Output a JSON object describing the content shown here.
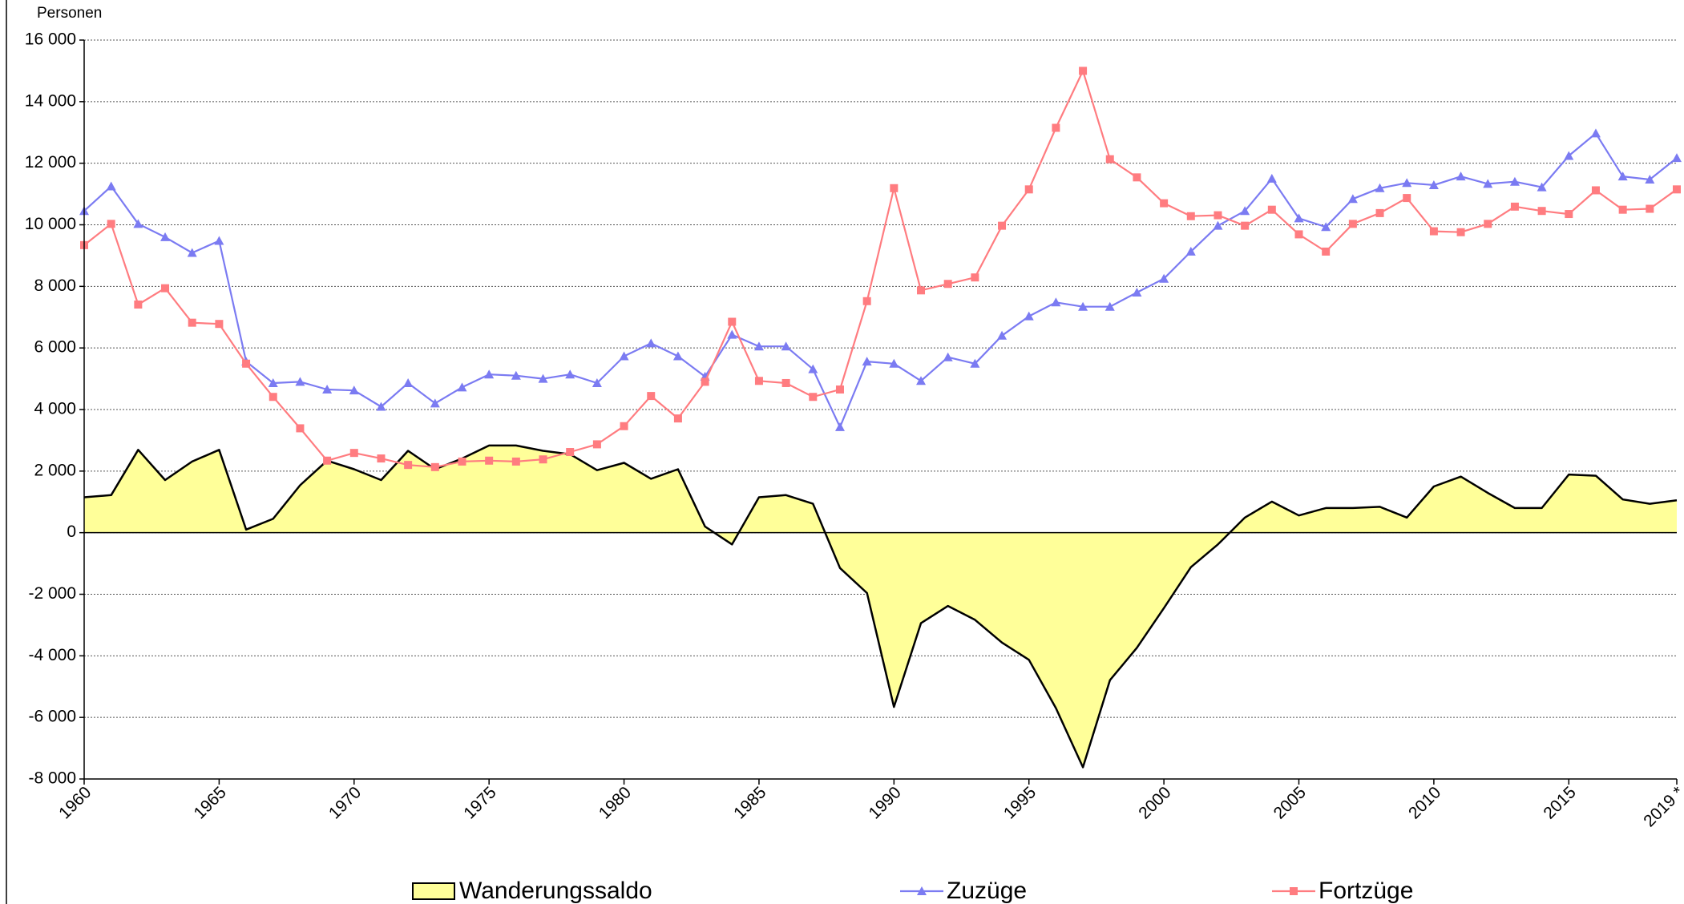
{
  "chart_data": {
    "type": "line",
    "y_label": "Personen",
    "categories": [
      "1960",
      null,
      null,
      null,
      null,
      "1965",
      null,
      null,
      null,
      null,
      "1970",
      null,
      null,
      null,
      null,
      "1975",
      null,
      null,
      null,
      null,
      "1980",
      null,
      null,
      null,
      null,
      "1985",
      null,
      null,
      null,
      null,
      "1990",
      null,
      null,
      null,
      null,
      "1995",
      null,
      null,
      null,
      null,
      "2000",
      null,
      null,
      null,
      null,
      "2005",
      null,
      null,
      null,
      null,
      "2010",
      null,
      null,
      null,
      null,
      "2015",
      null,
      null,
      null,
      "2019 *"
    ],
    "series": [
      {
        "name": "Wanderungssaldo",
        "type": "area",
        "color": "#ffff99",
        "values": [
          1150,
          1220,
          2690,
          1710,
          2310,
          2690,
          100,
          450,
          1540,
          2340,
          2060,
          1710,
          2660,
          2060,
          2410,
          2830,
          2830,
          2660,
          2550,
          2030,
          2270,
          1750,
          2060,
          200,
          -380,
          1150,
          1220,
          940,
          -1150,
          -1960,
          -5660,
          -2940,
          -2380,
          -2830,
          -3570,
          -4130,
          -5700,
          -7620,
          -4790,
          -3740,
          -2450,
          -1120,
          -380,
          490,
          1010,
          560,
          800,
          800,
          840,
          490,
          1500,
          1820,
          1290,
          800,
          800,
          1890,
          1850,
          1080,
          940,
          1050
        ]
      },
      {
        "name": "Zuzüge",
        "type": "line",
        "marker": "triangle",
        "color": "#7b7bf2",
        "values": [
          10450,
          11250,
          10030,
          9600,
          9090,
          9480,
          5560,
          4860,
          4900,
          4650,
          4620,
          4090,
          4860,
          4200,
          4720,
          5140,
          5100,
          5000,
          5140,
          4860,
          5730,
          6150,
          5730,
          5070,
          6430,
          6050,
          6050,
          5310,
          3430,
          5560,
          5490,
          4930,
          5700,
          5490,
          6400,
          7030,
          7480,
          7340,
          7340,
          7800,
          8250,
          9130,
          9970,
          10450,
          11500,
          10210,
          9930,
          10840,
          11190,
          11360,
          11290,
          11570,
          11330,
          11400,
          11220,
          12240,
          12970,
          11570,
          11470,
          12170
        ]
      },
      {
        "name": "Fortzüge",
        "type": "line",
        "marker": "square",
        "color": "#ff7c80",
        "values": [
          9340,
          10030,
          7410,
          7940,
          6820,
          6780,
          5490,
          4410,
          3390,
          2340,
          2590,
          2410,
          2200,
          2130,
          2310,
          2340,
          2310,
          2380,
          2620,
          2870,
          3460,
          4440,
          3710,
          4900,
          6850,
          4930,
          4860,
          4410,
          4650,
          7520,
          11190,
          7870,
          8080,
          8290,
          9970,
          11150,
          13150,
          15000,
          12130,
          11540,
          10700,
          10280,
          10310,
          9970,
          10490,
          9690,
          9130,
          10030,
          10380,
          10870,
          9790,
          9760,
          10030,
          10590,
          10450,
          10350,
          11120,
          10490,
          10520,
          11150
        ]
      }
    ],
    "ylim": [
      -8000,
      16000
    ],
    "yticks": [
      {
        "value": -8000,
        "label": "-8 000"
      },
      {
        "value": -6000,
        "label": "-6 000"
      },
      {
        "value": -4000,
        "label": "-4 000"
      },
      {
        "value": -2000,
        "label": "-2 000"
      },
      0,
      {
        "value": 2000,
        "label": "2 000"
      },
      {
        "value": 4000,
        "label": "4 000"
      },
      {
        "value": 6000,
        "label": "6 000"
      },
      {
        "value": 8000,
        "label": "8 000"
      },
      {
        "value": 10000,
        "label": "10 000"
      },
      {
        "value": 12000,
        "label": "12 000"
      },
      {
        "value": 14000,
        "label": "14 000"
      },
      {
        "value": 16000,
        "label": "16 000"
      }
    ],
    "grid": true,
    "legend": "bottom"
  }
}
